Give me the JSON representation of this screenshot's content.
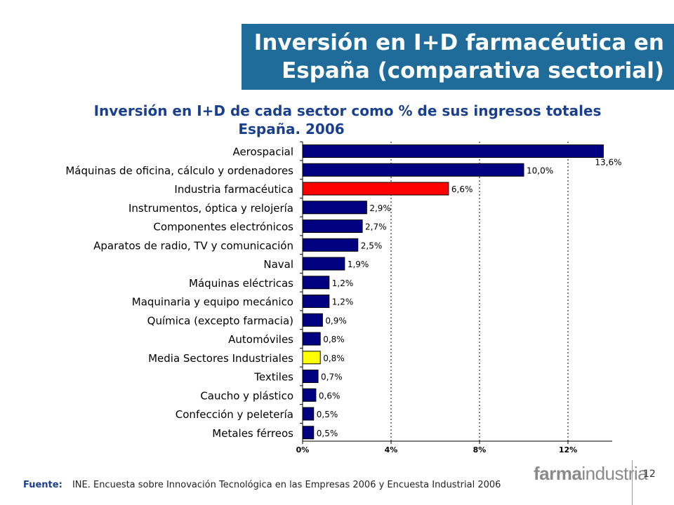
{
  "slide": {
    "title_line1": "Inversión en I+D farmacéutica en",
    "title_line2": "España (comparativa sectorial)",
    "page_number": "12",
    "logo_part1": "farma",
    "logo_part2": "industria"
  },
  "footer": {
    "label": "Fuente:",
    "text": "INE. Encuesta sobre Innovación Tecnológica en las Empresas 2006 y Encuesta Industrial 2006"
  },
  "colors": {
    "bar_default": "#000080",
    "bar_pharma": "#ff0000",
    "bar_average": "#ffff00",
    "title_bg": "#1f6b9a",
    "chart_title": "#1a3f8c"
  },
  "chart_data": {
    "type": "bar",
    "orientation": "horizontal",
    "title": "Inversión en I+D de cada sector como % de sus ingresos totales",
    "subtitle": "España. 2006",
    "xlim": [
      0,
      14
    ],
    "xticks": [
      0,
      4,
      8,
      12
    ],
    "xtick_labels": [
      "0%",
      "4%",
      "8%",
      "12%"
    ],
    "grid": "vertical dotted",
    "categories": [
      "Aerospacial",
      "Máquinas de oficina, cálculo y ordenadores",
      "Industria farmacéutica",
      "Instrumentos, óptica y relojería",
      "Componentes electrónicos",
      "Aparatos de radio, TV y comunicación",
      "Naval",
      "Máquinas eléctricas",
      "Maquinaria y equipo mecánico",
      "Química (excepto farmacia)",
      "Automóviles",
      "Media Sectores Industriales",
      "Textiles",
      "Caucho y plástico",
      "Confección y peletería",
      "Metales férreos"
    ],
    "values": [
      13.6,
      10.0,
      6.6,
      2.9,
      2.7,
      2.5,
      1.9,
      1.2,
      1.2,
      0.9,
      0.8,
      0.8,
      0.7,
      0.6,
      0.5,
      0.5
    ],
    "value_labels": [
      "13,6%",
      "10,0%",
      "6,6%",
      "2,9%",
      "2,7%",
      "2,5%",
      "1,9%",
      "1,2%",
      "1,2%",
      "0,9%",
      "0,8%",
      "0,8%",
      "0,7%",
      "0,6%",
      "0,5%",
      "0,5%"
    ],
    "highlight": {
      "Industria farmacéutica": "#ff0000",
      "Media Sectores Industriales": "#ffff00"
    }
  }
}
